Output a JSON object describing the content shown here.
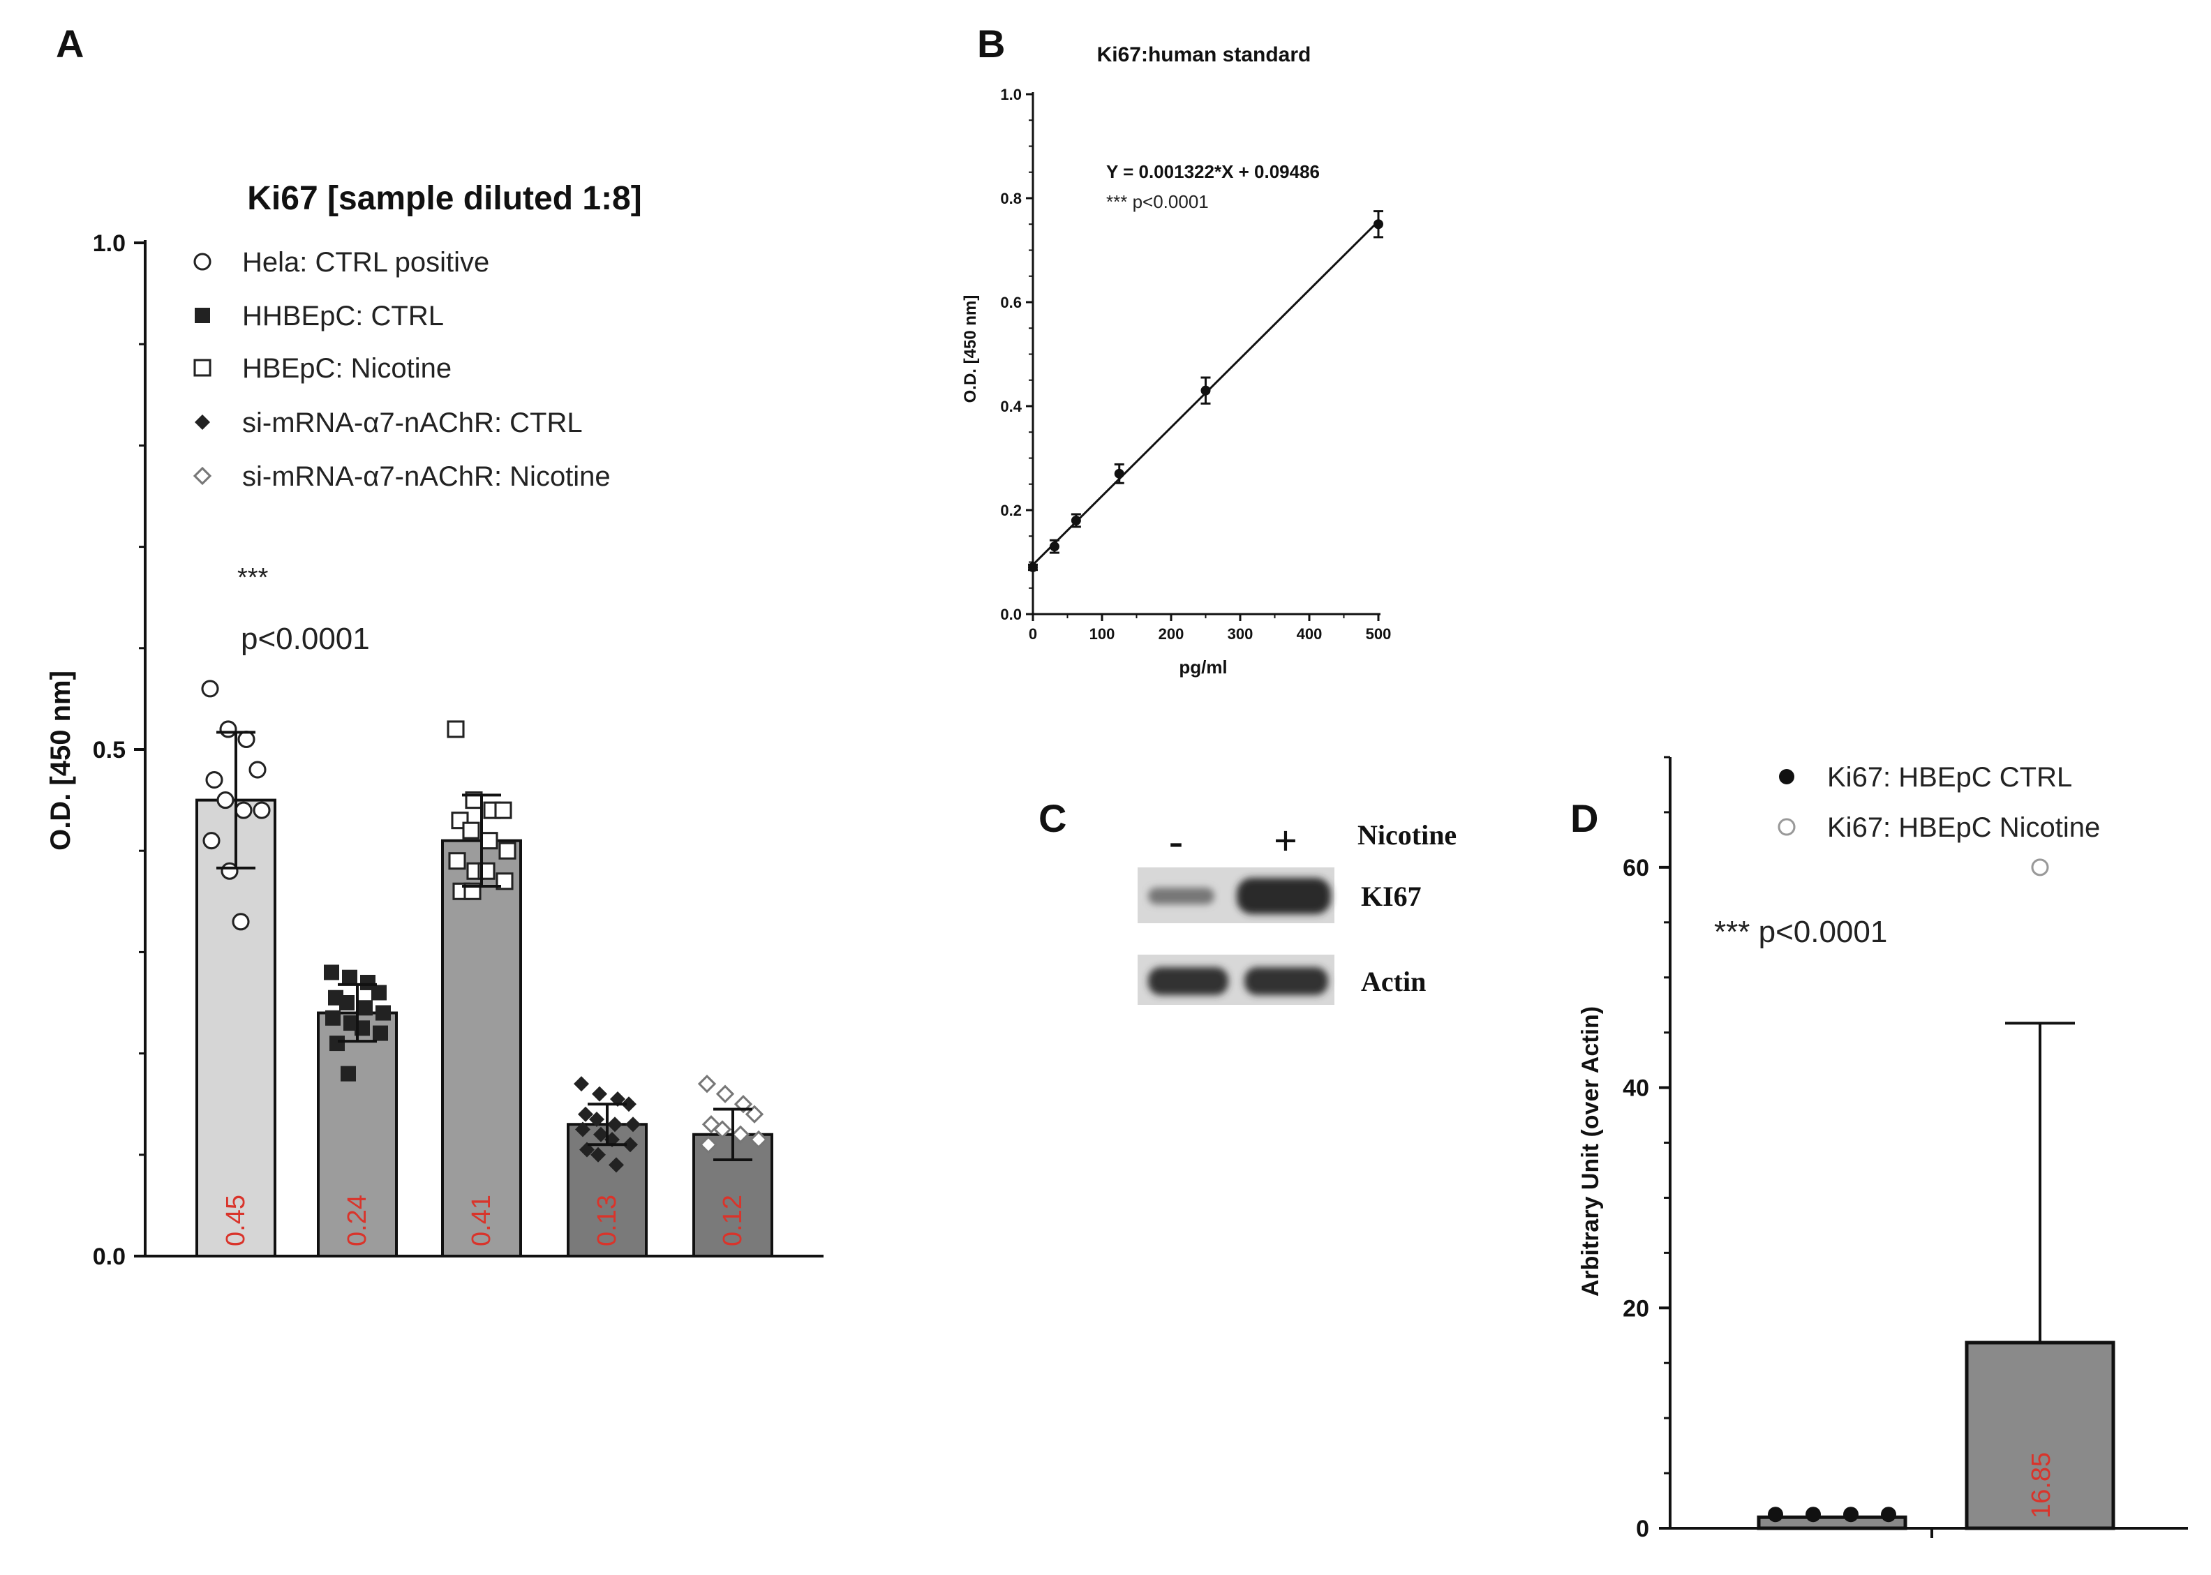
{
  "panels": {
    "a": "A",
    "b": "B",
    "c": "C",
    "d": "D"
  },
  "blot": {
    "minus": "-",
    "plus": "+",
    "nicotine": "Nicotine",
    "ki67": "KI67",
    "actin": "Actin"
  },
  "chart_data": [
    {
      "id": "A",
      "type": "bar",
      "title": "Ki67 [sample diluted 1:8]",
      "ylabel": "O.D. [450 nm]",
      "ylim": [
        0,
        1.0
      ],
      "yticks": [
        "0.0",
        "0.5",
        "1.0"
      ],
      "annotation_stars": "***",
      "annotation_p": "p<0.0001",
      "legend": [
        {
          "label": "Hela: CTRL positive",
          "marker": "open-circle"
        },
        {
          "label": "HHBEpC: CTRL",
          "marker": "filled-square"
        },
        {
          "label": "HBEpC: Nicotine",
          "marker": "open-square"
        },
        {
          "label": "si-mRNA-α7-nAChR: CTRL",
          "marker": "filled-diamond"
        },
        {
          "label": "si-mRNA-α7-nAChR: Nicotine",
          "marker": "open-diamond"
        }
      ],
      "bars": [
        {
          "name": "Hela: CTRL positive",
          "value": 0.45,
          "label": "0.45",
          "err": 0.067,
          "fill": "#d6d6d6",
          "marker": "open-circle",
          "points": [
            0.56,
            0.52,
            0.51,
            0.48,
            0.47,
            0.45,
            0.44,
            0.44,
            0.41,
            0.38,
            0.33
          ]
        },
        {
          "name": "HHBEpC: CTRL",
          "value": 0.24,
          "label": "0.24",
          "err": 0.028,
          "fill": "#9c9c9c",
          "marker": "filled-square",
          "points": [
            0.28,
            0.275,
            0.27,
            0.26,
            0.255,
            0.25,
            0.245,
            0.24,
            0.235,
            0.23,
            0.225,
            0.22,
            0.21,
            0.18
          ]
        },
        {
          "name": "HBEpC: Nicotine",
          "value": 0.41,
          "label": "0.41",
          "err": 0.045,
          "fill": "#9c9c9c",
          "marker": "open-square",
          "points": [
            0.52,
            0.45,
            0.44,
            0.44,
            0.43,
            0.42,
            0.41,
            0.4,
            0.39,
            0.38,
            0.38,
            0.37,
            0.36,
            0.36
          ]
        },
        {
          "name": "si-mRNA-α7-nAChR: CTRL",
          "value": 0.13,
          "label": "0.13",
          "err": 0.02,
          "fill": "#7a7a7a",
          "marker": "filled-diamond",
          "points": [
            0.17,
            0.16,
            0.155,
            0.15,
            0.14,
            0.135,
            0.13,
            0.13,
            0.125,
            0.12,
            0.115,
            0.11,
            0.105,
            0.1,
            0.09
          ]
        },
        {
          "name": "si-mRNA-α7-nAChR: Nicotine",
          "value": 0.12,
          "label": "0.12",
          "err": 0.025,
          "fill": "#7a7a7a",
          "marker": "open-diamond",
          "points": [
            0.17,
            0.16,
            0.15,
            0.14,
            0.13,
            0.125,
            0.12,
            0.115,
            0.11
          ]
        }
      ]
    },
    {
      "id": "B",
      "type": "line",
      "title": "Ki67:human standard",
      "xlabel": "pg/ml",
      "ylabel": "O.D. [450 nm]",
      "xlim": [
        0,
        500
      ],
      "ylim": [
        0,
        1.0
      ],
      "xticks": [
        0,
        100,
        200,
        300,
        400,
        500
      ],
      "yticks": [
        "0.0",
        "0.2",
        "0.4",
        "0.6",
        "0.8",
        "1.0"
      ],
      "equation": "Y = 0.001322*X + 0.09486",
      "significance": "*** p<0.0001",
      "slope": 0.001322,
      "intercept": 0.09486,
      "x": [
        0,
        31.25,
        62.5,
        125,
        250,
        500
      ],
      "y": [
        0.09,
        0.13,
        0.18,
        0.27,
        0.43,
        0.75
      ],
      "err": [
        0.005,
        0.012,
        0.012,
        0.018,
        0.025,
        0.025
      ]
    },
    {
      "id": "D",
      "type": "bar",
      "ylabel": "Arbitrary Unit (over Actin)",
      "ylim": [
        0,
        70
      ],
      "yticks": [
        0,
        20,
        40,
        60
      ],
      "annotation": "*** p<0.0001",
      "legend": [
        {
          "label": "Ki67: HBEpC CTRL",
          "marker": "filled-circle"
        },
        {
          "label": "Ki67: HBEpC Nicotine",
          "marker": "open-circle"
        }
      ],
      "bars": [
        {
          "name": "Ki67: HBEpC CTRL",
          "value": 1,
          "label": "",
          "err": 0,
          "fill": "#8a8a8a",
          "marker": "filled-circle",
          "points": [
            1,
            1,
            1,
            1
          ]
        },
        {
          "name": "Ki67: HBEpC Nicotine",
          "value": 16.85,
          "label": "16.85",
          "err": 29,
          "fill": "#8a8a8a",
          "marker": "open-circle",
          "points": [
            60
          ]
        }
      ]
    }
  ]
}
